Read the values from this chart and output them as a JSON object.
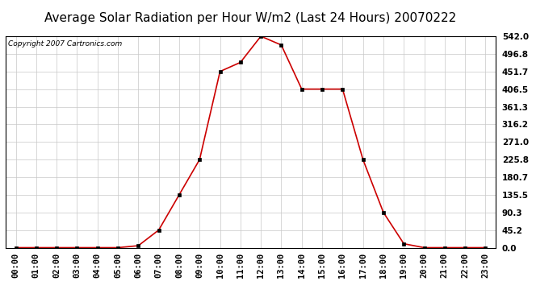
{
  "title": "Average Solar Radiation per Hour W/m2 (Last 24 Hours) 20070222",
  "copyright": "Copyright 2007 Cartronics.com",
  "hours": [
    "00:00",
    "01:00",
    "02:00",
    "03:00",
    "04:00",
    "05:00",
    "06:00",
    "07:00",
    "08:00",
    "09:00",
    "10:00",
    "11:00",
    "12:00",
    "13:00",
    "14:00",
    "15:00",
    "16:00",
    "17:00",
    "18:00",
    "19:00",
    "20:00",
    "21:00",
    "22:00",
    "23:00"
  ],
  "values": [
    0.0,
    0.0,
    0.0,
    0.0,
    0.0,
    0.0,
    5.0,
    45.2,
    135.5,
    225.8,
    451.7,
    475.0,
    542.0,
    519.5,
    406.5,
    406.5,
    406.5,
    225.8,
    90.3,
    10.0,
    0.0,
    0.0,
    0.0,
    0.0
  ],
  "yticks": [
    0.0,
    45.2,
    90.3,
    135.5,
    180.7,
    225.8,
    271.0,
    316.2,
    361.3,
    406.5,
    451.7,
    496.8,
    542.0
  ],
  "ymax": 542.0,
  "ymin": 0.0,
  "line_color": "#cc0000",
  "marker_color": "#000000",
  "bg_color": "#ffffff",
  "plot_bg_color": "#ffffff",
  "grid_color": "#c8c8c8",
  "title_fontsize": 11,
  "copyright_fontsize": 6.5,
  "tick_fontsize": 7.5,
  "ytick_fontsize": 7.5
}
